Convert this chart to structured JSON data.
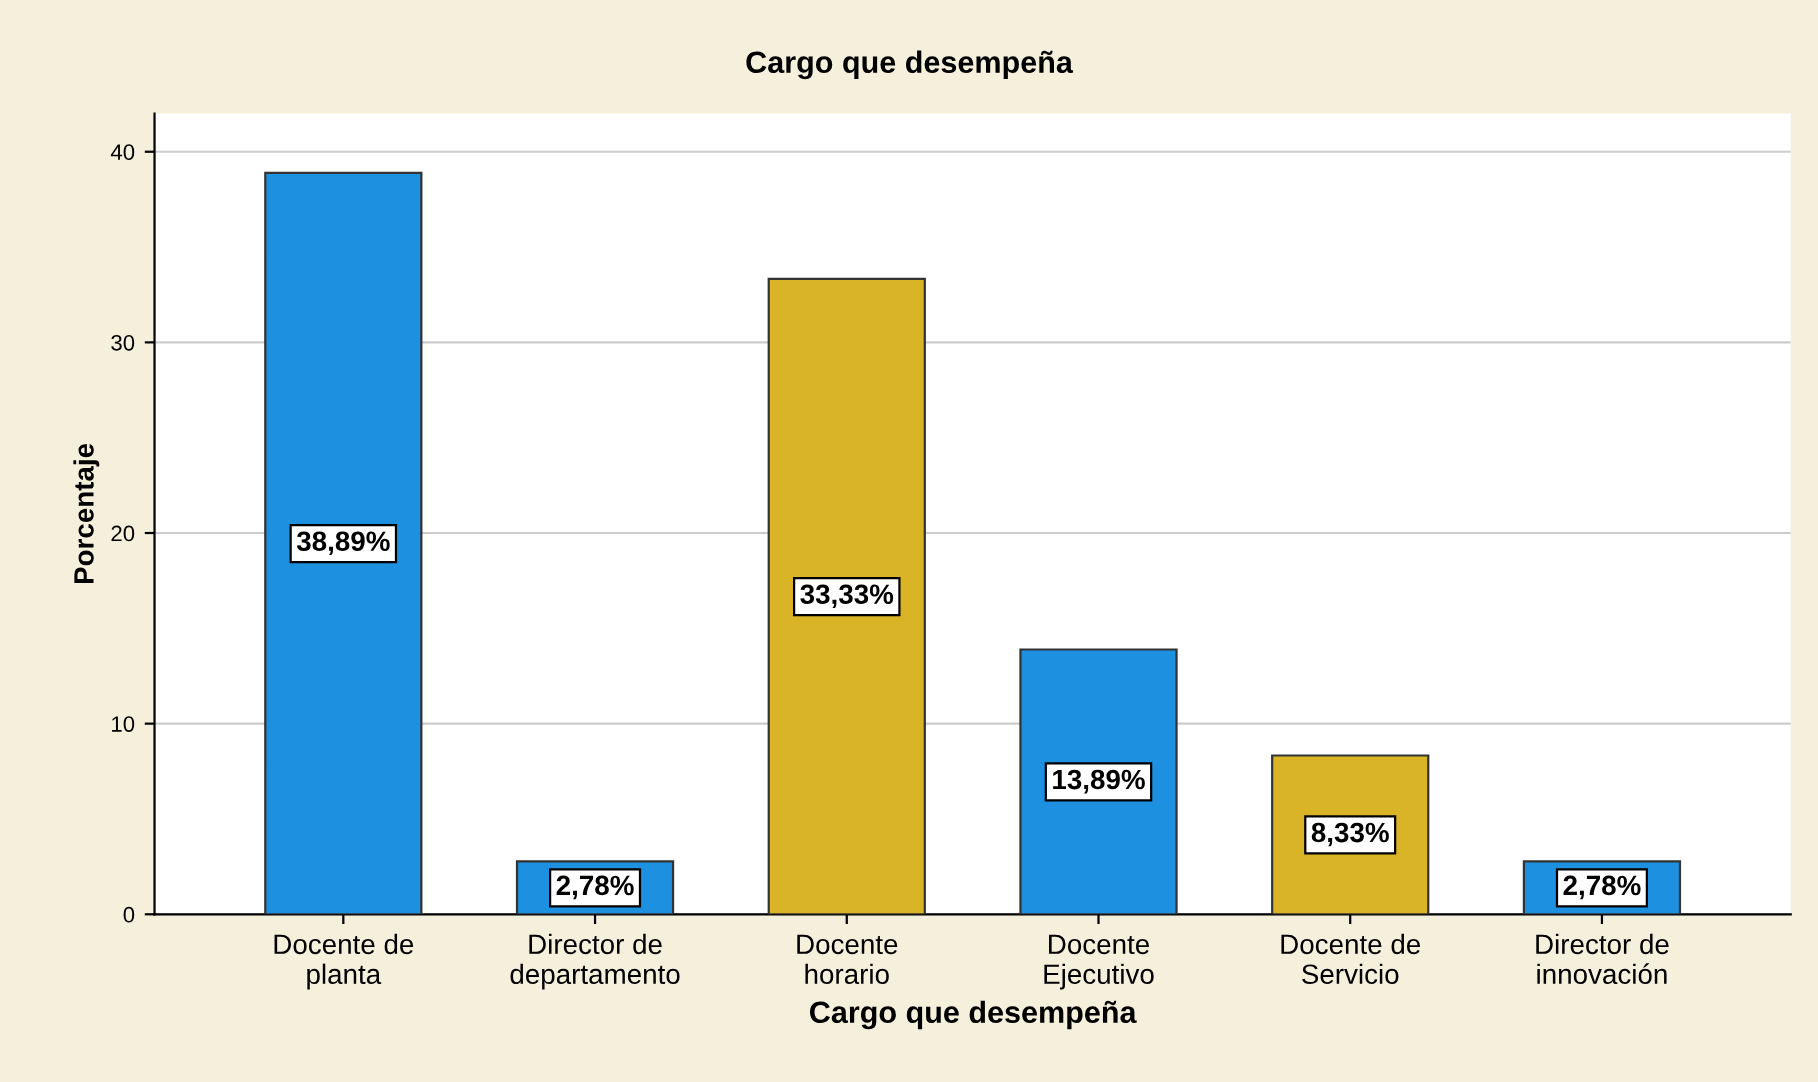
{
  "chart_data": {
    "type": "bar",
    "title": "Cargo que desempeña",
    "xlabel": "Cargo que desempeña",
    "ylabel": "Porcentaje",
    "categories": [
      "Docente de\nplanta",
      "Director de\ndepartamento",
      "Docente\nhorario",
      "Docente\nEjecutivo",
      "Docente de\nServicio",
      "Director de\ninnovación"
    ],
    "values": [
      38.89,
      2.78,
      33.33,
      13.89,
      8.33,
      2.78
    ],
    "colors": [
      "#1e90e0",
      "#1e90e0",
      "#d9b427",
      "#1e90e0",
      "#d9b427",
      "#1e90e0"
    ],
    "value_labels": [
      "38,89%",
      "2,78%",
      "33,33%",
      "13,89%",
      "8,33%",
      "2,78%"
    ],
    "ylim": [
      0,
      42
    ],
    "yticks": [
      0,
      10,
      20,
      30,
      40
    ],
    "grid": "y",
    "legend": false
  }
}
